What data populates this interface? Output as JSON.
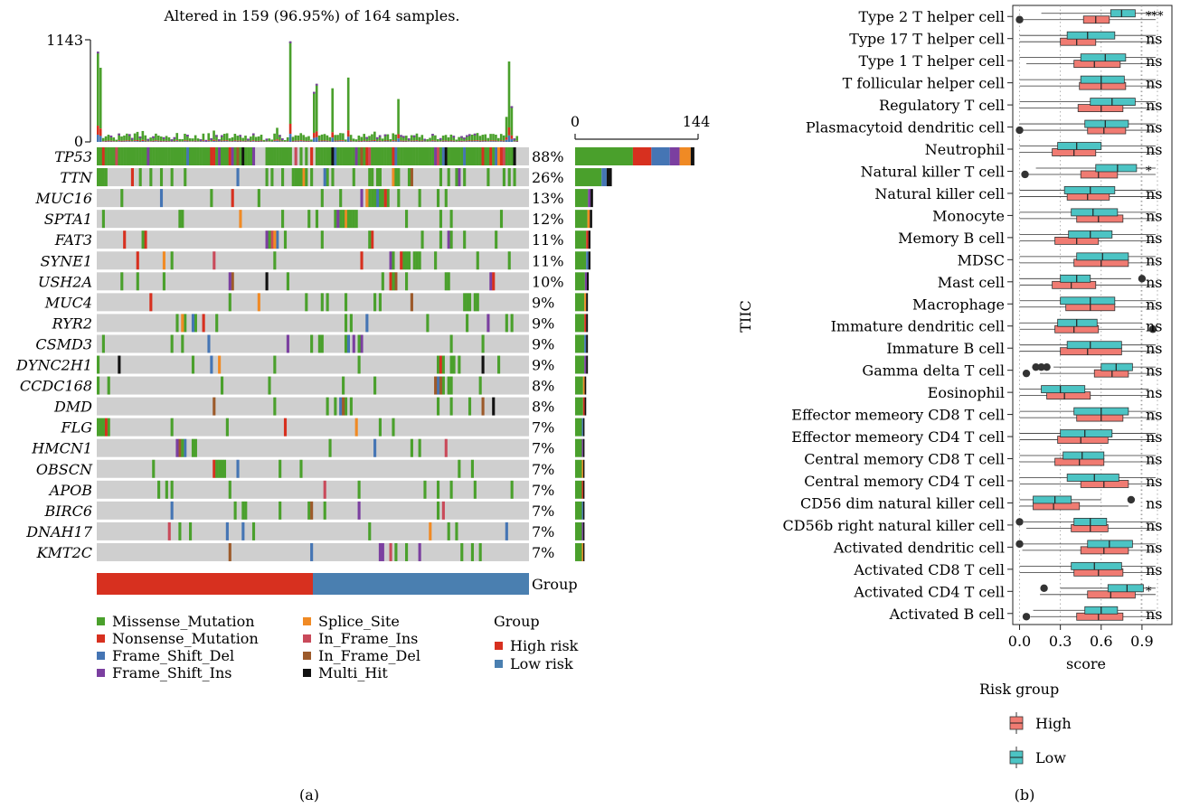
{
  "panel_a": {
    "caption": "(a)",
    "title": "Altered in 159 (96.95%) of 164 samples.",
    "tmb_axis": {
      "max_label": "1143",
      "min_label": "0"
    },
    "count_axis": {
      "min_label": "0",
      "max_label": "144"
    },
    "group_label": "Group",
    "legend_group_title": "Group",
    "colors": {
      "Missense_Mutation": "#4aa02c",
      "Nonsense_Mutation": "#d7301f",
      "Frame_Shift_Del": "#4575b4",
      "Frame_Shift_Ins": "#7b3fa0",
      "Splice_Site": "#f08a24",
      "In_Frame_Ins": "#c94a5a",
      "In_Frame_Del": "#9c5a2a",
      "Multi_Hit": "#111111",
      "background": "#cfcfcf",
      "High risk": "#d7301f",
      "Low risk": "#4a7fb0"
    },
    "variant_legend": [
      "Missense_Mutation",
      "Nonsense_Mutation",
      "Frame_Shift_Del",
      "Frame_Shift_Ins",
      "Splice_Site",
      "In_Frame_Ins",
      "In_Frame_Del",
      "Multi_Hit"
    ],
    "group_legend": [
      "High risk",
      "Low risk"
    ]
  },
  "panel_b": {
    "caption": "(b)",
    "colors": {
      "High": "#f07b72",
      "Low": "#4cc4c4"
    }
  },
  "chart_data": [
    {
      "type": "heatmap",
      "title": "Altered in 159 (96.95%) of 164 samples.",
      "samples_total": 164,
      "samples_altered": 159,
      "genes": [
        "TP53",
        "TTN",
        "MUC16",
        "SPTA1",
        "FAT3",
        "SYNE1",
        "USH2A",
        "MUC4",
        "RYR2",
        "CSMD3",
        "DYNC2H1",
        "CCDC168",
        "DMD",
        "FLG",
        "HMCN1",
        "OBSCN",
        "APOB",
        "BIRC6",
        "DNAH17",
        "KMT2C"
      ],
      "percent_labels": [
        "88%",
        "26%",
        "13%",
        "12%",
        "11%",
        "11%",
        "10%",
        "9%",
        "9%",
        "9%",
        "9%",
        "8%",
        "8%",
        "7%",
        "7%",
        "7%",
        "7%",
        "7%",
        "7%",
        "7%"
      ],
      "gene_counts": [
        144,
        43,
        21,
        20,
        18,
        18,
        16,
        15,
        15,
        15,
        15,
        13,
        13,
        11,
        11,
        11,
        11,
        11,
        11,
        11
      ],
      "gene_counts_axis": [
        0,
        144
      ],
      "tmb_ylim": [
        0,
        1143
      ],
      "group_split_high_samples": 82,
      "groups": [
        "High risk",
        "Low risk"
      ]
    },
    {
      "type": "box",
      "xlabel": "score",
      "ylabel": "TIIC",
      "xticks": [
        "0.0",
        "0.3",
        "0.6",
        "0.9"
      ],
      "xlim": [
        -0.05,
        1.12
      ],
      "legend_title": "Risk group",
      "series_names": [
        "High",
        "Low"
      ],
      "categories": [
        {
          "name": "Type 2 T helper cell",
          "sig": "***",
          "high": {
            "q1": 0.47,
            "med": 0.56,
            "q3": 0.66,
            "wlo": 0.02,
            "whi": 1.0,
            "out": [
              0.0
            ]
          },
          "low": {
            "q1": 0.67,
            "med": 0.75,
            "q3": 0.85,
            "wlo": 0.16,
            "whi": 1.0,
            "out": []
          }
        },
        {
          "name": "Type 17 T helper cell",
          "sig": "ns",
          "high": {
            "q1": 0.3,
            "med": 0.42,
            "q3": 0.56,
            "wlo": 0.0,
            "whi": 1.0,
            "out": []
          },
          "low": {
            "q1": 0.35,
            "med": 0.5,
            "q3": 0.7,
            "wlo": 0.0,
            "whi": 1.0,
            "out": []
          }
        },
        {
          "name": "Type 1 T helper cell",
          "sig": "ns",
          "high": {
            "q1": 0.4,
            "med": 0.55,
            "q3": 0.74,
            "wlo": 0.05,
            "whi": 1.0,
            "out": []
          },
          "low": {
            "q1": 0.45,
            "med": 0.63,
            "q3": 0.78,
            "wlo": 0.0,
            "whi": 1.0,
            "out": []
          }
        },
        {
          "name": "T follicular helper cell",
          "sig": "ns",
          "high": {
            "q1": 0.44,
            "med": 0.6,
            "q3": 0.78,
            "wlo": 0.0,
            "whi": 1.0,
            "out": []
          },
          "low": {
            "q1": 0.45,
            "med": 0.6,
            "q3": 0.77,
            "wlo": 0.0,
            "whi": 1.0,
            "out": []
          }
        },
        {
          "name": "Regulatory T cell",
          "sig": "ns",
          "high": {
            "q1": 0.43,
            "med": 0.6,
            "q3": 0.76,
            "wlo": 0.0,
            "whi": 1.0,
            "out": []
          },
          "low": {
            "q1": 0.52,
            "med": 0.68,
            "q3": 0.85,
            "wlo": 0.0,
            "whi": 1.0,
            "out": []
          }
        },
        {
          "name": "Plasmacytoid dendritic cell",
          "sig": "ns",
          "high": {
            "q1": 0.5,
            "med": 0.62,
            "q3": 0.78,
            "wlo": 0.02,
            "whi": 1.0,
            "out": [
              0.0
            ]
          },
          "low": {
            "q1": 0.48,
            "med": 0.63,
            "q3": 0.8,
            "wlo": 0.0,
            "whi": 1.0,
            "out": []
          }
        },
        {
          "name": "Neutrophil",
          "sig": "ns",
          "high": {
            "q1": 0.24,
            "med": 0.4,
            "q3": 0.56,
            "wlo": 0.0,
            "whi": 1.0,
            "out": []
          },
          "low": {
            "q1": 0.28,
            "med": 0.42,
            "q3": 0.6,
            "wlo": 0.0,
            "whi": 1.0,
            "out": []
          }
        },
        {
          "name": "Natural killer T cell",
          "sig": "*",
          "high": {
            "q1": 0.45,
            "med": 0.58,
            "q3": 0.72,
            "wlo": 0.05,
            "whi": 1.0,
            "out": [
              0.04
            ]
          },
          "low": {
            "q1": 0.56,
            "med": 0.72,
            "q3": 0.86,
            "wlo": 0.12,
            "whi": 1.0,
            "out": []
          }
        },
        {
          "name": "Natural killer cell",
          "sig": "ns",
          "high": {
            "q1": 0.35,
            "med": 0.5,
            "q3": 0.66,
            "wlo": 0.0,
            "whi": 1.0,
            "out": []
          },
          "low": {
            "q1": 0.33,
            "med": 0.52,
            "q3": 0.7,
            "wlo": 0.0,
            "whi": 1.0,
            "out": []
          }
        },
        {
          "name": "Monocyte",
          "sig": "ns",
          "high": {
            "q1": 0.42,
            "med": 0.58,
            "q3": 0.76,
            "wlo": 0.0,
            "whi": 1.0,
            "out": []
          },
          "low": {
            "q1": 0.38,
            "med": 0.54,
            "q3": 0.72,
            "wlo": 0.0,
            "whi": 1.0,
            "out": []
          }
        },
        {
          "name": "Memory B cell",
          "sig": "ns",
          "high": {
            "q1": 0.26,
            "med": 0.42,
            "q3": 0.58,
            "wlo": 0.0,
            "whi": 1.0,
            "out": []
          },
          "low": {
            "q1": 0.36,
            "med": 0.52,
            "q3": 0.68,
            "wlo": 0.0,
            "whi": 1.0,
            "out": []
          }
        },
        {
          "name": "MDSC",
          "sig": "ns",
          "high": {
            "q1": 0.4,
            "med": 0.6,
            "q3": 0.8,
            "wlo": 0.0,
            "whi": 1.0,
            "out": []
          },
          "low": {
            "q1": 0.42,
            "med": 0.61,
            "q3": 0.8,
            "wlo": 0.0,
            "whi": 1.0,
            "out": []
          }
        },
        {
          "name": "Mast cell",
          "sig": "ns",
          "high": {
            "q1": 0.24,
            "med": 0.38,
            "q3": 0.56,
            "wlo": 0.0,
            "whi": 1.0,
            "out": []
          },
          "low": {
            "q1": 0.3,
            "med": 0.42,
            "q3": 0.52,
            "wlo": 0.0,
            "whi": 0.82,
            "out": [
              0.9
            ]
          }
        },
        {
          "name": "Macrophage",
          "sig": "ns",
          "high": {
            "q1": 0.34,
            "med": 0.52,
            "q3": 0.7,
            "wlo": 0.0,
            "whi": 1.0,
            "out": []
          },
          "low": {
            "q1": 0.3,
            "med": 0.52,
            "q3": 0.7,
            "wlo": 0.0,
            "whi": 1.0,
            "out": []
          }
        },
        {
          "name": "Immature dendritic cell",
          "sig": "ns",
          "high": {
            "q1": 0.26,
            "med": 0.4,
            "q3": 0.58,
            "wlo": 0.0,
            "whi": 0.92,
            "out": [
              0.98
            ]
          },
          "low": {
            "q1": 0.28,
            "med": 0.42,
            "q3": 0.57,
            "wlo": 0.0,
            "whi": 0.9,
            "out": []
          }
        },
        {
          "name": "Immature B cell",
          "sig": "ns",
          "high": {
            "q1": 0.3,
            "med": 0.5,
            "q3": 0.75,
            "wlo": 0.0,
            "whi": 1.0,
            "out": []
          },
          "low": {
            "q1": 0.35,
            "med": 0.52,
            "q3": 0.75,
            "wlo": 0.0,
            "whi": 1.0,
            "out": []
          }
        },
        {
          "name": "Gamma delta T cell",
          "sig": "ns",
          "high": {
            "q1": 0.55,
            "med": 0.68,
            "q3": 0.8,
            "wlo": 0.15,
            "whi": 1.0,
            "out": [
              0.05
            ]
          },
          "low": {
            "q1": 0.6,
            "med": 0.71,
            "q3": 0.83,
            "wlo": 0.25,
            "whi": 1.0,
            "out": [
              0.12,
              0.16,
              0.2
            ]
          }
        },
        {
          "name": "Eosinophil",
          "sig": "ns",
          "high": {
            "q1": 0.2,
            "med": 0.33,
            "q3": 0.52,
            "wlo": 0.0,
            "whi": 0.95,
            "out": []
          },
          "low": {
            "q1": 0.16,
            "med": 0.3,
            "q3": 0.48,
            "wlo": 0.0,
            "whi": 0.95,
            "out": []
          }
        },
        {
          "name": "Effector memeory CD8 T cell",
          "sig": "ns",
          "high": {
            "q1": 0.42,
            "med": 0.6,
            "q3": 0.76,
            "wlo": 0.0,
            "whi": 1.0,
            "out": []
          },
          "low": {
            "q1": 0.4,
            "med": 0.6,
            "q3": 0.8,
            "wlo": 0.0,
            "whi": 1.0,
            "out": []
          }
        },
        {
          "name": "Effector memeory CD4 T cell",
          "sig": "ns",
          "high": {
            "q1": 0.28,
            "med": 0.45,
            "q3": 0.65,
            "wlo": 0.0,
            "whi": 1.0,
            "out": []
          },
          "low": {
            "q1": 0.3,
            "med": 0.48,
            "q3": 0.68,
            "wlo": 0.0,
            "whi": 1.0,
            "out": []
          }
        },
        {
          "name": "Central memory CD8 T cell",
          "sig": "ns",
          "high": {
            "q1": 0.26,
            "med": 0.44,
            "q3": 0.62,
            "wlo": 0.0,
            "whi": 1.0,
            "out": []
          },
          "low": {
            "q1": 0.32,
            "med": 0.46,
            "q3": 0.62,
            "wlo": 0.0,
            "whi": 1.0,
            "out": []
          }
        },
        {
          "name": "Central memory CD4 T cell",
          "sig": "ns",
          "high": {
            "q1": 0.45,
            "med": 0.62,
            "q3": 0.8,
            "wlo": 0.0,
            "whi": 1.0,
            "out": []
          },
          "low": {
            "q1": 0.35,
            "med": 0.55,
            "q3": 0.73,
            "wlo": 0.0,
            "whi": 1.0,
            "out": []
          }
        },
        {
          "name": "CD56 dim natural killer cell",
          "sig": "ns",
          "high": {
            "q1": 0.1,
            "med": 0.25,
            "q3": 0.44,
            "wlo": 0.0,
            "whi": 0.8,
            "out": []
          },
          "low": {
            "q1": 0.1,
            "med": 0.26,
            "q3": 0.38,
            "wlo": 0.0,
            "whi": 0.6,
            "out": [
              0.82
            ]
          }
        },
        {
          "name": "CD56b right natural killer cell",
          "sig": "ns",
          "high": {
            "q1": 0.38,
            "med": 0.52,
            "q3": 0.65,
            "wlo": 0.05,
            "whi": 1.0,
            "out": []
          },
          "low": {
            "q1": 0.4,
            "med": 0.52,
            "q3": 0.64,
            "wlo": 0.03,
            "whi": 1.0,
            "out": [
              0.0
            ]
          }
        },
        {
          "name": "Activated dendritic cell",
          "sig": "ns",
          "high": {
            "q1": 0.45,
            "med": 0.62,
            "q3": 0.8,
            "wlo": 0.02,
            "whi": 1.0,
            "out": []
          },
          "low": {
            "q1": 0.5,
            "med": 0.66,
            "q3": 0.83,
            "wlo": 0.02,
            "whi": 1.0,
            "out": [
              0.0
            ]
          }
        },
        {
          "name": "Activated CD8 T cell",
          "sig": "ns",
          "high": {
            "q1": 0.4,
            "med": 0.58,
            "q3": 0.76,
            "wlo": 0.0,
            "whi": 1.0,
            "out": []
          },
          "low": {
            "q1": 0.38,
            "med": 0.55,
            "q3": 0.75,
            "wlo": 0.0,
            "whi": 1.0,
            "out": []
          }
        },
        {
          "name": "Activated CD4 T cell",
          "sig": "*",
          "high": {
            "q1": 0.5,
            "med": 0.67,
            "q3": 0.85,
            "wlo": 0.15,
            "whi": 1.0,
            "out": []
          },
          "low": {
            "q1": 0.65,
            "med": 0.79,
            "q3": 0.91,
            "wlo": 0.3,
            "whi": 1.0,
            "out": [
              0.18
            ]
          }
        },
        {
          "name": "Activated B cell",
          "sig": "ns",
          "high": {
            "q1": 0.42,
            "med": 0.58,
            "q3": 0.76,
            "wlo": 0.08,
            "whi": 1.0,
            "out": [
              0.05
            ]
          },
          "low": {
            "q1": 0.48,
            "med": 0.6,
            "q3": 0.72,
            "wlo": 0.1,
            "whi": 1.0,
            "out": []
          }
        }
      ]
    }
  ]
}
